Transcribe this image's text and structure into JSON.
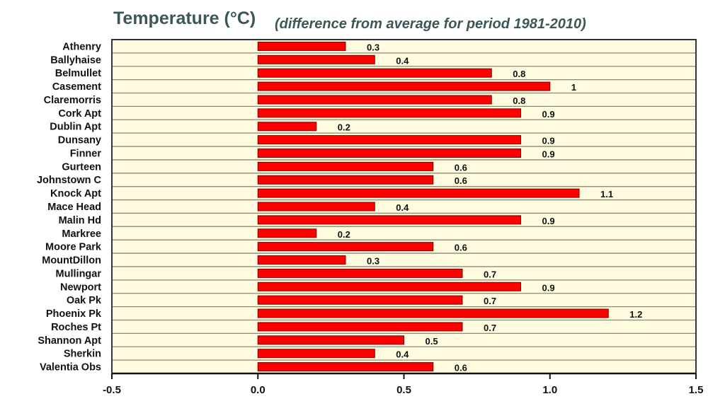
{
  "chart_data": {
    "type": "bar",
    "orientation": "horizontal",
    "title": "Temperature (°C)",
    "subtitle": "(difference from average for period 1981-2010)",
    "categories": [
      "Athenry",
      "Ballyhaise",
      "Belmullet",
      "Casement",
      "Claremorris",
      "Cork Apt",
      "Dublin Apt",
      "Dunsany",
      "Finner",
      "Gurteen",
      "Johnstown C",
      "Knock Apt",
      "Mace Head",
      "Malin Hd",
      "Markree",
      "Moore Park",
      "MountDillon",
      "Mullingar",
      "Newport",
      "Oak Pk",
      "Phoenix Pk",
      "Roches Pt",
      "Shannon Apt",
      "Sherkin",
      "Valentia Obs"
    ],
    "values": [
      0.3,
      0.4,
      0.8,
      1,
      0.8,
      0.9,
      0.2,
      0.9,
      0.9,
      0.6,
      0.6,
      1.1,
      0.4,
      0.9,
      0.2,
      0.6,
      0.3,
      0.7,
      0.9,
      0.7,
      1.2,
      0.7,
      0.5,
      0.4,
      0.6
    ],
    "data_labels": [
      "0.3",
      "0.4",
      "0.8",
      "1",
      "0.8",
      "0.9",
      "0.2",
      "0.9",
      "0.9",
      "0.6",
      "0.6",
      "1.1",
      "0.4",
      "0.9",
      "0.2",
      "0.6",
      "0.3",
      "0.7",
      "0.9",
      "0.7",
      "1.2",
      "0.7",
      "0.5",
      "0.4",
      "0.6"
    ],
    "xlim": [
      -0.5,
      1.5
    ],
    "xticks": [
      "-0.5",
      "0.0",
      "0.5",
      "1.0",
      "1.5"
    ],
    "xtick_values": [
      -0.5,
      0,
      0.5,
      1,
      1.5
    ],
    "xlabel": "",
    "ylabel": "",
    "grid": "horizontal row separators",
    "colors": {
      "bar": "#ff0000",
      "bar_edge": "#7a0000",
      "plot_background": "#fefbdf",
      "title": "#3b5757"
    }
  }
}
